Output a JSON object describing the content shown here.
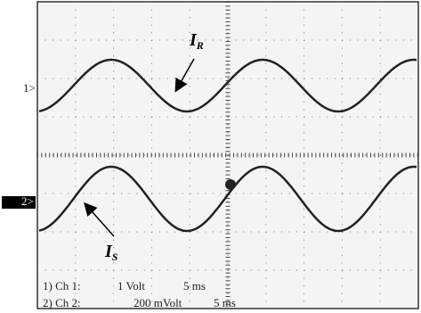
{
  "markers": {
    "ch1": "1>",
    "ch2": "2>"
  },
  "labels": {
    "ir": {
      "main": "I",
      "sub": "R"
    },
    "is": {
      "main": "I",
      "sub": "S"
    }
  },
  "settings": [
    {
      "channel": "1) Ch 1:",
      "scale": "1 Volt",
      "time": "5 ms"
    },
    {
      "channel": "2) Ch 2:",
      "scale": "200 mVolt",
      "time": "5 ms"
    }
  ]
}
